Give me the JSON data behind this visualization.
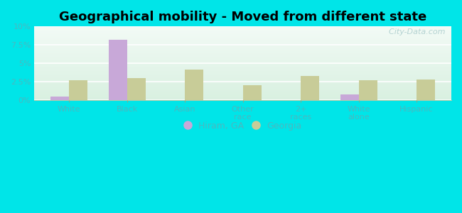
{
  "title": "Geographical mobility - Moved from different state",
  "categories": [
    "White",
    "Black",
    "Asian",
    "Other\nrace",
    "2+\nraces",
    "White\nalone",
    "Hispanic"
  ],
  "hiram_values": [
    0.5,
    8.2,
    0.0,
    0.0,
    0.0,
    0.8,
    0.0
  ],
  "georgia_values": [
    2.7,
    3.0,
    4.2,
    2.0,
    3.3,
    2.7,
    2.8
  ],
  "hiram_color": "#c8a8d8",
  "georgia_color": "#c8cc98",
  "ylim": [
    0,
    10
  ],
  "yticks": [
    0,
    2.5,
    5.0,
    7.5,
    10.0
  ],
  "ytick_labels": [
    "0%",
    "2.5%",
    "5%",
    "7.5%",
    "10%"
  ],
  "legend_hiram": "Hiram, GA",
  "legend_georgia": "Georgia",
  "title_fontsize": 13,
  "bar_width": 0.32,
  "outer_bg": "#00e5e8",
  "tick_label_color": "#4ab8c0",
  "watermark_text": "  City-Data.com",
  "grid_color": "#d0e8d0",
  "plot_bg_top": "#f2faf5",
  "plot_bg_bottom": "#d8f0e0"
}
